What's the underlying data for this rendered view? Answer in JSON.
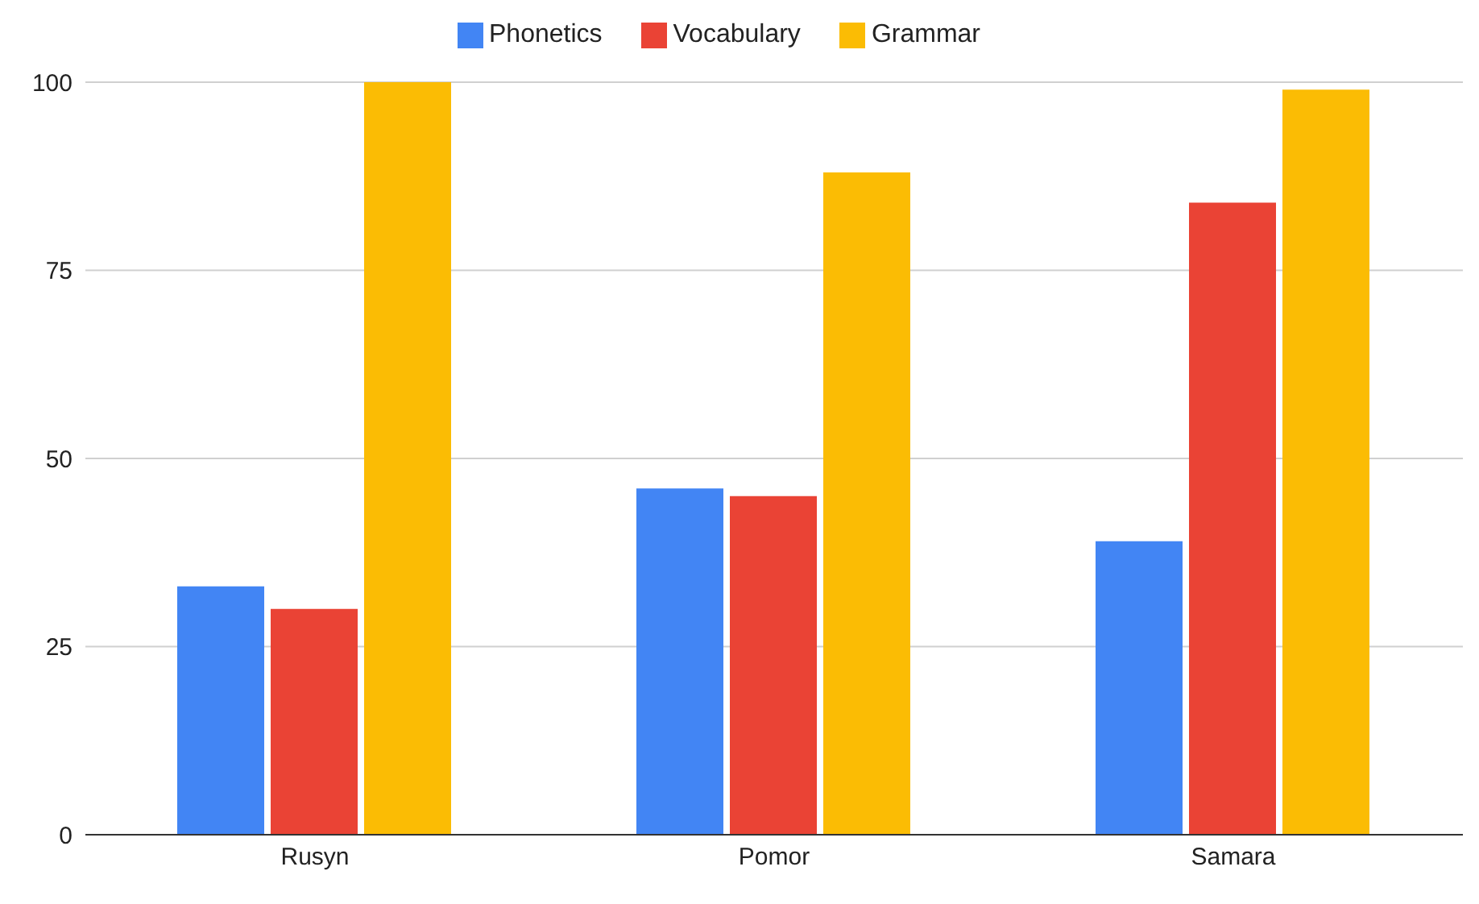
{
  "chart_data": {
    "type": "bar",
    "categories": [
      "Rusyn",
      "Pomor",
      "Samara"
    ],
    "series": [
      {
        "name": "Phonetics",
        "color": "#4285f4",
        "values": [
          33,
          46,
          39
        ]
      },
      {
        "name": "Vocabulary",
        "color": "#ea4335",
        "values": [
          30,
          45,
          84
        ]
      },
      {
        "name": "Grammar",
        "color": "#fbbc04",
        "values": [
          100,
          88,
          99
        ]
      }
    ],
    "ylim": [
      0,
      100
    ],
    "yticks": [
      0,
      25,
      50,
      75,
      100
    ],
    "grid": "y",
    "legend": "top"
  }
}
